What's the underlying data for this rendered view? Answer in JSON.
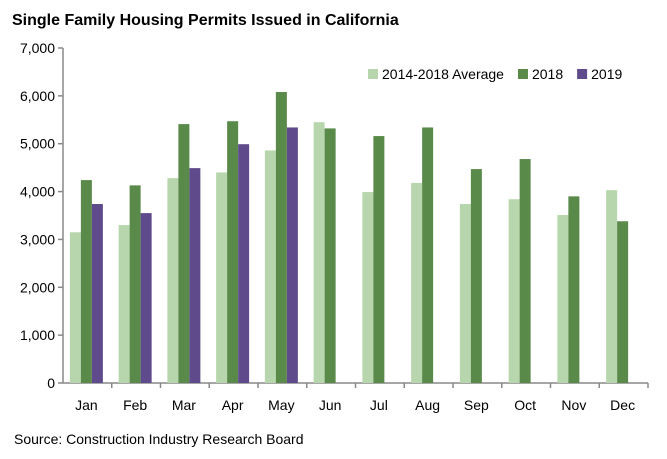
{
  "chart_data": {
    "type": "bar",
    "title": "Single Family Housing Permits Issued in California",
    "source": "Source: Construction Industry Research Board",
    "categories": [
      "Jan",
      "Feb",
      "Mar",
      "Apr",
      "May",
      "Jun",
      "Jul",
      "Aug",
      "Sep",
      "Oct",
      "Nov",
      "Dec"
    ],
    "series": [
      {
        "name": "2014-2018 Average",
        "color": "#b8d6ad",
        "values": [
          3150,
          3300,
          4280,
          4400,
          4860,
          5450,
          3990,
          4180,
          3740,
          3840,
          3510,
          4030
        ]
      },
      {
        "name": "2018",
        "color": "#5a8a4a",
        "values": [
          4240,
          4130,
          5410,
          5470,
          6080,
          5320,
          5160,
          5340,
          4470,
          4680,
          3900,
          3380
        ]
      },
      {
        "name": "2019",
        "color": "#5f4b8b",
        "values": [
          3740,
          3550,
          4490,
          4990,
          5340,
          null,
          null,
          null,
          null,
          null,
          null,
          null
        ]
      }
    ],
    "ylim": [
      0,
      7000
    ],
    "yticks": [
      "0",
      "1,000",
      "2,000",
      "3,000",
      "4,000",
      "5,000",
      "6,000",
      "7,000"
    ],
    "grid": false,
    "legend": "top-right"
  }
}
